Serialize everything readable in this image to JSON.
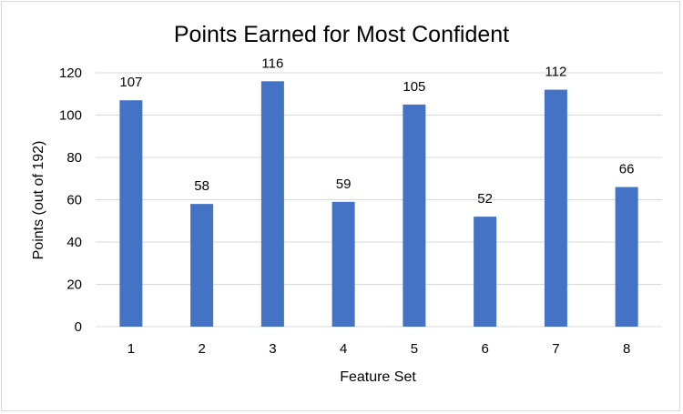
{
  "chart_data": {
    "type": "bar",
    "title": "Points Earned for Most Confident",
    "xlabel": "Feature Set",
    "ylabel": "Points (out of 192)",
    "categories": [
      "1",
      "2",
      "3",
      "4",
      "5",
      "6",
      "7",
      "8"
    ],
    "values": [
      107,
      58,
      116,
      59,
      105,
      52,
      112,
      66
    ],
    "data_labels": [
      "107",
      "58",
      "116",
      "59",
      "105",
      "52",
      "112",
      "66"
    ],
    "ylim": [
      0,
      120
    ],
    "yticks": [
      "0",
      "20",
      "40",
      "60",
      "80",
      "100",
      "120"
    ],
    "ytick_values": [
      0,
      20,
      40,
      60,
      80,
      100,
      120
    ],
    "grid": true,
    "legend": "none",
    "bar_color": "#4472C4"
  }
}
